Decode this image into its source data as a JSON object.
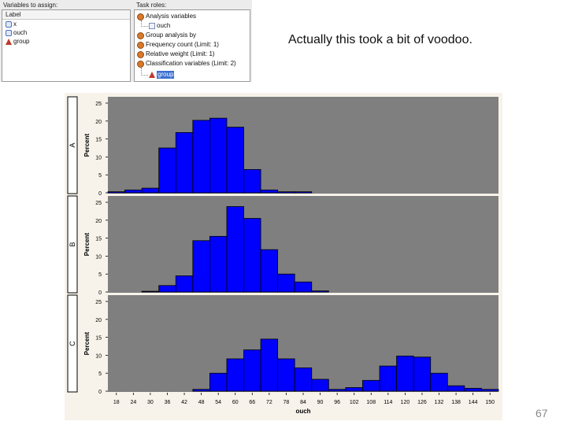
{
  "dialog": {
    "variables_title": "Variables to assign:",
    "roles_title": "Task roles:",
    "column_header": "Label",
    "variables": [
      {
        "name": "x",
        "icon": "numeric-variable-icon"
      },
      {
        "name": "ouch",
        "icon": "numeric-variable-icon"
      },
      {
        "name": "group",
        "icon": "character-variable-icon"
      }
    ],
    "roles": [
      {
        "label": "Analysis variables",
        "level": 0,
        "icon": "role-icon"
      },
      {
        "label": "ouch",
        "level": 1,
        "icon": "numeric-variable-icon"
      },
      {
        "label": "Group analysis by",
        "level": 0,
        "icon": "role-icon"
      },
      {
        "label": "Frequency count  (Limit: 1)",
        "level": 0,
        "icon": "role-icon"
      },
      {
        "label": "Relative weight  (Limit: 1)",
        "level": 0,
        "icon": "role-icon"
      },
      {
        "label": "Classification variables  (Limit: 2)",
        "level": 0,
        "icon": "role-icon"
      },
      {
        "label": "group",
        "level": 1,
        "icon": "character-variable-icon",
        "selected": true
      }
    ]
  },
  "caption": "Actually this took a bit of voodoo.",
  "page_number": "67",
  "colors": {
    "bar_fill": "#0000ff",
    "bar_stroke": "#000000",
    "plot_bg": "#7f7f7f",
    "frame_bg": "#f7f3ea"
  },
  "chart_data": {
    "type": "bar",
    "xlabel": "ouch",
    "ylabel": "Percent",
    "ylim": [
      0,
      25
    ],
    "yticks": [
      "0",
      "5",
      "10",
      "15",
      "20",
      "25"
    ],
    "categories": [
      "18",
      "24",
      "30",
      "36",
      "42",
      "48",
      "54",
      "60",
      "66",
      "72",
      "78",
      "84",
      "90",
      "96",
      "102",
      "108",
      "114",
      "120",
      "126",
      "132",
      "138",
      "144",
      "150"
    ],
    "panels": [
      {
        "name": "A",
        "values": [
          0.3,
          0.8,
          1.3,
          12.5,
          16.8,
          20.2,
          20.8,
          18.3,
          6.5,
          0.8,
          0.3,
          0.3,
          0,
          0,
          0,
          0,
          0,
          0,
          0,
          0,
          0,
          0,
          0
        ]
      },
      {
        "name": "B",
        "values": [
          0,
          0,
          0.2,
          1.8,
          4.5,
          14.3,
          15.5,
          23.8,
          20.5,
          11.8,
          5.0,
          2.8,
          0.3,
          0,
          0,
          0,
          0,
          0,
          0,
          0,
          0,
          0,
          0
        ]
      },
      {
        "name": "C",
        "values": [
          0,
          0,
          0,
          0,
          0,
          0.5,
          5.0,
          9.0,
          11.5,
          14.5,
          9.0,
          6.5,
          3.3,
          0.5,
          1.0,
          3.0,
          7.0,
          9.8,
          9.5,
          5.0,
          1.5,
          0.8,
          0.5
        ]
      }
    ]
  }
}
